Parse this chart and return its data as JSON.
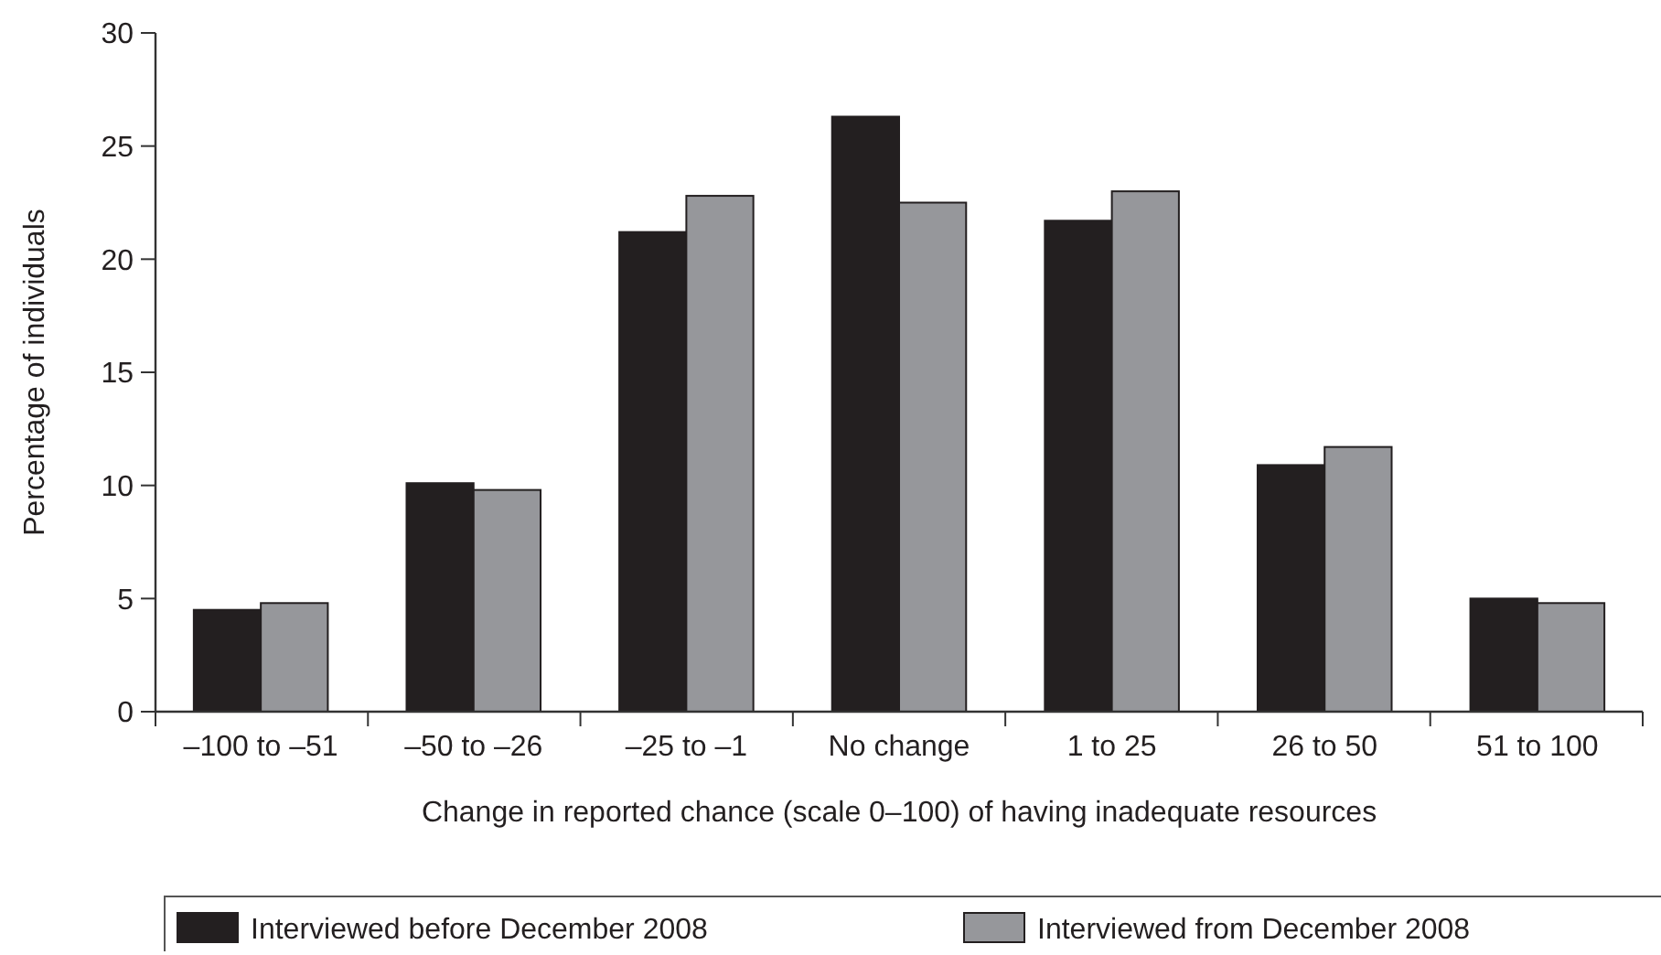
{
  "chart_data": {
    "type": "bar",
    "xlabel": "Change in reported chance (scale 0–100) of having inadequate resources",
    "ylabel": "Percentage of individuals",
    "categories": [
      "–100 to –51",
      "–50 to –26",
      "–25 to –1",
      "No change",
      "1 to 25",
      "26 to 50",
      "51 to 100"
    ],
    "series": [
      {
        "name": "Interviewed before December 2008",
        "color": "#231f20",
        "values": [
          4.5,
          10.1,
          21.2,
          26.3,
          21.7,
          10.9,
          5.0
        ]
      },
      {
        "name": "Interviewed from December 2008",
        "color": "#96979b",
        "values": [
          4.8,
          9.8,
          22.8,
          22.5,
          23.0,
          11.7,
          4.8
        ]
      }
    ],
    "ylim": [
      0,
      30
    ],
    "yticks": [
      0,
      5,
      10,
      15,
      20,
      25,
      30
    ],
    "grid": false,
    "legend": "bottom"
  }
}
